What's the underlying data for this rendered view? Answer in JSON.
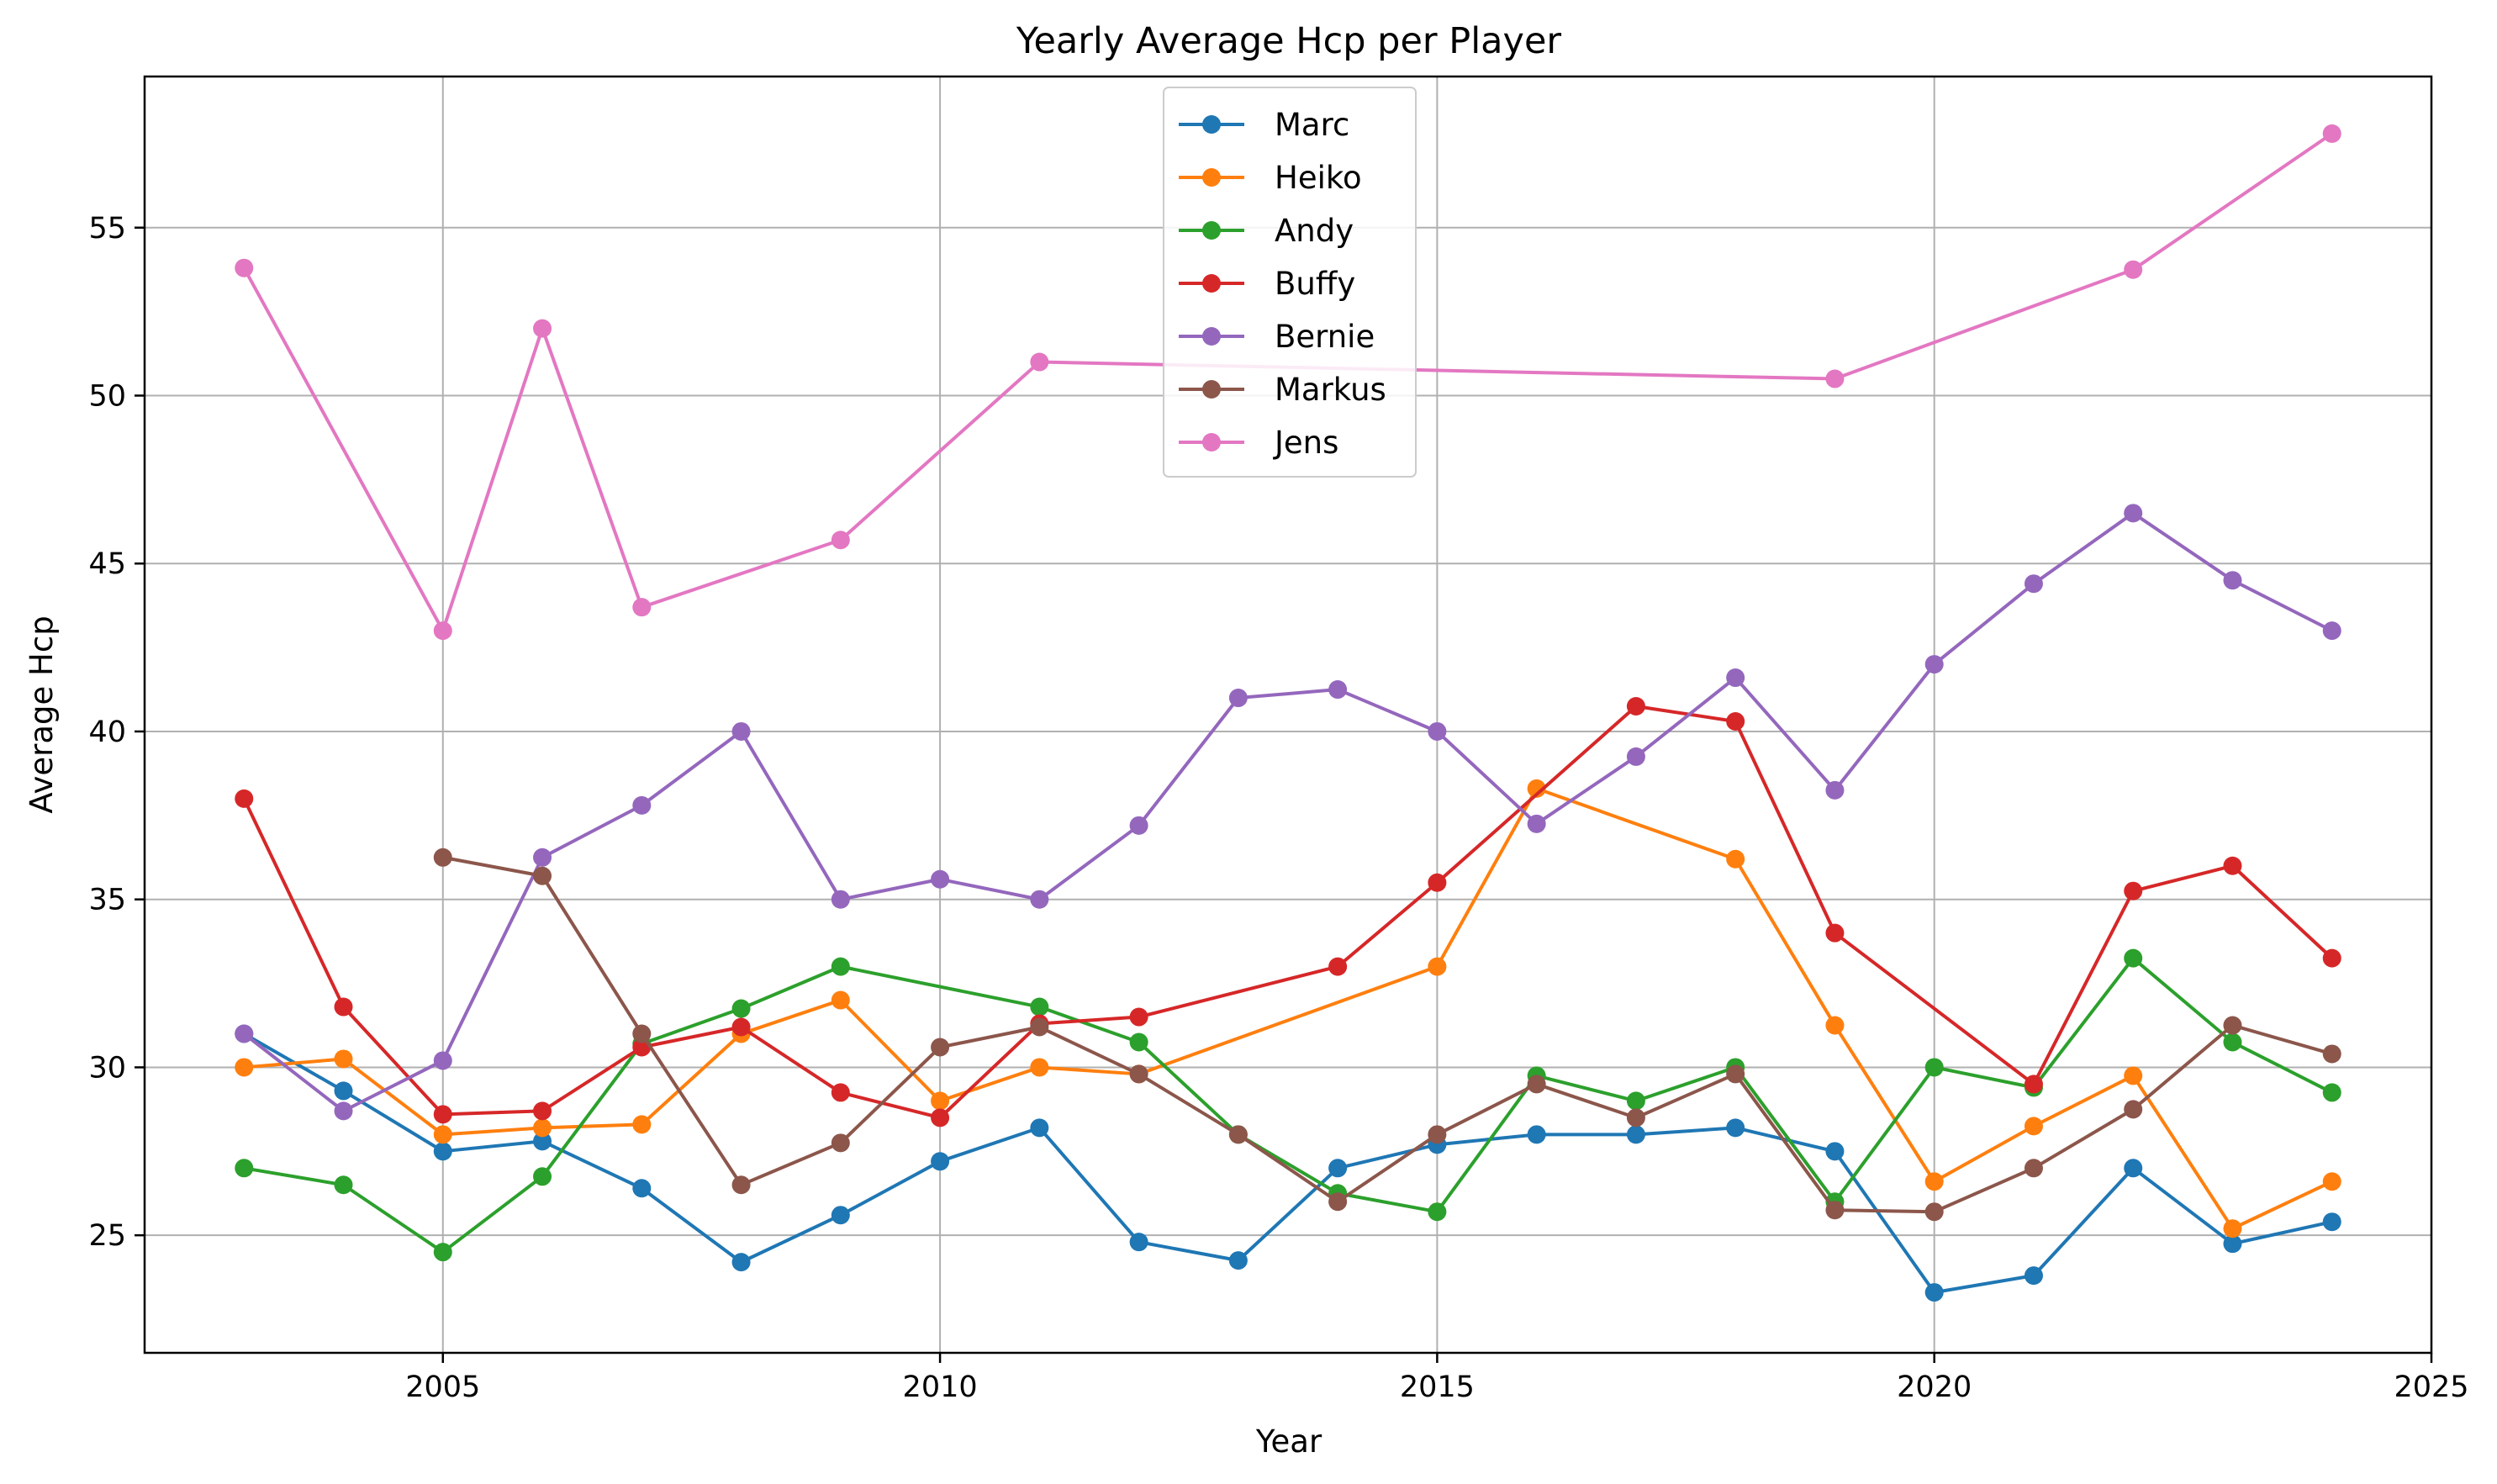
{
  "chart_data": {
    "type": "line",
    "title": "Yearly Average Hcp per Player",
    "xlabel": "Year",
    "ylabel": "Average Hcp",
    "xlim": [
      2002,
      2025
    ],
    "ylim": [
      21.5,
      59.5
    ],
    "xticks": [
      2005,
      2010,
      2015,
      2020,
      2025
    ],
    "yticks": [
      25,
      30,
      35,
      40,
      45,
      50,
      55
    ],
    "grid": true,
    "legend_position": "top-center",
    "series": [
      {
        "name": "Marc",
        "color": "#1f77b4",
        "points": [
          [
            2003,
            31.0
          ],
          [
            2004,
            29.3
          ],
          [
            2005,
            27.5
          ],
          [
            2006,
            27.8
          ],
          [
            2007,
            26.4
          ],
          [
            2008,
            24.2
          ],
          [
            2009,
            25.6
          ],
          [
            2010,
            27.2
          ],
          [
            2011,
            28.2
          ],
          [
            2012,
            24.8
          ],
          [
            2013,
            24.25
          ],
          [
            2014,
            27.0
          ],
          [
            2015,
            27.7
          ],
          [
            2016,
            28.0
          ],
          [
            2017,
            28.0
          ],
          [
            2018,
            28.2
          ],
          [
            2019,
            27.5
          ],
          [
            2020,
            23.3
          ],
          [
            2021,
            23.8
          ],
          [
            2022,
            27.0
          ],
          [
            2023,
            24.75
          ],
          [
            2024,
            25.4
          ]
        ]
      },
      {
        "name": "Heiko",
        "color": "#ff7f0e",
        "points": [
          [
            2003,
            30.0
          ],
          [
            2004,
            30.25
          ],
          [
            2005,
            28.0
          ],
          [
            2006,
            28.2
          ],
          [
            2007,
            28.3
          ],
          [
            2008,
            31.0
          ],
          [
            2009,
            32.0
          ],
          [
            2010,
            29.0
          ],
          [
            2011,
            30.0
          ],
          [
            2012,
            29.8
          ],
          [
            2015,
            33.0
          ],
          [
            2016,
            38.3
          ],
          [
            2018,
            36.2
          ],
          [
            2019,
            31.25
          ],
          [
            2020,
            26.6
          ],
          [
            2021,
            28.25
          ],
          [
            2022,
            29.75
          ],
          [
            2023,
            25.2
          ],
          [
            2024,
            26.6
          ]
        ]
      },
      {
        "name": "Andy",
        "color": "#2ca02c",
        "points": [
          [
            2003,
            27.0
          ],
          [
            2004,
            26.5
          ],
          [
            2005,
            24.5
          ],
          [
            2006,
            26.75
          ],
          [
            2007,
            30.7
          ],
          [
            2008,
            31.75
          ],
          [
            2009,
            33.0
          ],
          [
            2011,
            31.8
          ],
          [
            2012,
            30.75
          ],
          [
            2013,
            28.0
          ],
          [
            2014,
            26.25
          ],
          [
            2015,
            25.7
          ],
          [
            2016,
            29.75
          ],
          [
            2017,
            29.0
          ],
          [
            2018,
            30.0
          ],
          [
            2019,
            26.0
          ],
          [
            2020,
            30.0
          ],
          [
            2021,
            29.4
          ],
          [
            2022,
            33.25
          ],
          [
            2023,
            30.75
          ],
          [
            2024,
            29.25
          ]
        ]
      },
      {
        "name": "Buffy",
        "color": "#d62728",
        "points": [
          [
            2003,
            38.0
          ],
          [
            2004,
            31.8
          ],
          [
            2005,
            28.6
          ],
          [
            2006,
            28.7
          ],
          [
            2007,
            30.6
          ],
          [
            2008,
            31.2
          ],
          [
            2009,
            29.25
          ],
          [
            2010,
            28.5
          ],
          [
            2011,
            31.3
          ],
          [
            2012,
            31.5
          ],
          [
            2014,
            33.0
          ],
          [
            2015,
            35.5
          ],
          [
            2017,
            40.75
          ],
          [
            2018,
            40.3
          ],
          [
            2019,
            34.0
          ],
          [
            2021,
            29.5
          ],
          [
            2022,
            35.25
          ],
          [
            2023,
            36.0
          ],
          [
            2024,
            33.25
          ]
        ]
      },
      {
        "name": "Bernie",
        "color": "#9467bd",
        "points": [
          [
            2003,
            31.0
          ],
          [
            2004,
            28.7
          ],
          [
            2005,
            30.2
          ],
          [
            2006,
            36.25
          ],
          [
            2007,
            37.8
          ],
          [
            2008,
            40.0
          ],
          [
            2009,
            35.0
          ],
          [
            2010,
            35.6
          ],
          [
            2011,
            35.0
          ],
          [
            2012,
            37.2
          ],
          [
            2013,
            41.0
          ],
          [
            2014,
            41.25
          ],
          [
            2015,
            40.0
          ],
          [
            2016,
            37.25
          ],
          [
            2017,
            39.25
          ],
          [
            2018,
            41.6
          ],
          [
            2019,
            38.25
          ],
          [
            2020,
            42.0
          ],
          [
            2021,
            44.4
          ],
          [
            2022,
            46.5
          ],
          [
            2023,
            44.5
          ],
          [
            2024,
            43.0
          ]
        ]
      },
      {
        "name": "Markus",
        "color": "#8c564b",
        "points": [
          [
            2005,
            36.25
          ],
          [
            2006,
            35.7
          ],
          [
            2007,
            31.0
          ],
          [
            2008,
            26.5
          ],
          [
            2009,
            27.75
          ],
          [
            2010,
            30.6
          ],
          [
            2011,
            31.2
          ],
          [
            2012,
            29.8
          ],
          [
            2013,
            28.0
          ],
          [
            2014,
            26.0
          ],
          [
            2015,
            28.0
          ],
          [
            2016,
            29.5
          ],
          [
            2017,
            28.5
          ],
          [
            2018,
            29.8
          ],
          [
            2019,
            25.75
          ],
          [
            2020,
            25.7
          ],
          [
            2021,
            27.0
          ],
          [
            2022,
            28.75
          ],
          [
            2023,
            31.25
          ],
          [
            2024,
            30.4
          ]
        ]
      },
      {
        "name": "Jens",
        "color": "#e377c2",
        "points": [
          [
            2003,
            53.8
          ],
          [
            2005,
            43.0
          ],
          [
            2006,
            52.0
          ],
          [
            2007,
            43.7
          ],
          [
            2009,
            45.7
          ],
          [
            2011,
            51.0
          ],
          [
            2019,
            50.5
          ],
          [
            2022,
            53.75
          ],
          [
            2024,
            57.8
          ]
        ]
      }
    ]
  }
}
